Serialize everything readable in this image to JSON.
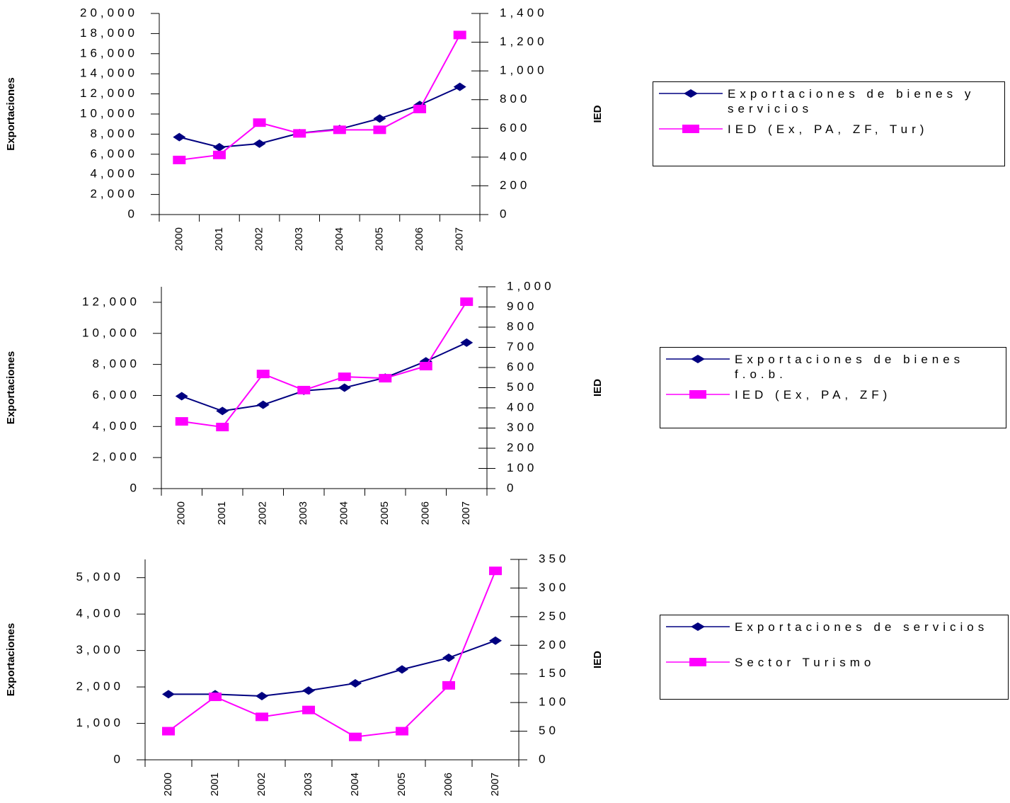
{
  "chart_data": [
    {
      "type": "line",
      "y_label": "Exportaciones",
      "y2_label": "IED",
      "categories": [
        "2000",
        "2001",
        "2002",
        "2003",
        "2004",
        "2005",
        "2006",
        "2007"
      ],
      "series": [
        {
          "name": "Exportaciones de bienes y servicios",
          "color": "#000080",
          "marker": "diamond",
          "values": [
            7700,
            6700,
            7050,
            8100,
            8500,
            9550,
            10900,
            12700
          ]
        },
        {
          "name": "IED (Ex, PA, ZF, Tur)",
          "color": "#ff00ff",
          "marker": "square",
          "axis": "y2",
          "values": [
            380,
            415,
            640,
            565,
            590,
            590,
            735,
            1250
          ]
        }
      ],
      "ylim": [
        0,
        20000
      ],
      "yticks": [
        0,
        {
          "value": 2000,
          "label": "2,000"
        },
        {
          "value": 4000,
          "label": "4,000"
        },
        {
          "value": 6000,
          "label": "6,000"
        },
        {
          "value": 8000,
          "label": "8,000"
        },
        {
          "value": 10000,
          "label": "10,000"
        },
        {
          "value": 12000,
          "label": "12,000"
        },
        {
          "value": 14000,
          "label": "14,000"
        },
        {
          "value": 16000,
          "label": "16,000"
        },
        {
          "value": 18000,
          "label": "18,000"
        },
        {
          "value": 20000,
          "label": "20,000"
        }
      ],
      "y2lim": [
        0,
        1400
      ],
      "y2ticks": [
        0,
        200,
        400,
        600,
        800,
        {
          "value": 1000,
          "label": "1,000"
        },
        {
          "value": 1200,
          "label": "1,200"
        },
        {
          "value": 1400,
          "label": "1,400"
        }
      ]
    },
    {
      "type": "line",
      "y_label": "Exportaciones",
      "y2_label": "IED",
      "categories": [
        "2000",
        "2001",
        "2002",
        "2003",
        "2004",
        "2005",
        "2006",
        "2007"
      ],
      "series": [
        {
          "name": "Exportaciones de bienes f.o.b.",
          "color": "#000080",
          "marker": "diamond",
          "values": [
            5950,
            5000,
            5400,
            6300,
            6500,
            7150,
            8200,
            9400
          ]
        },
        {
          "name": "IED (Ex, PA, ZF)",
          "color": "#ff00ff",
          "marker": "square",
          "axis": "y2",
          "values": [
            333,
            305,
            568,
            488,
            554,
            547,
            607,
            926
          ]
        }
      ],
      "ylim": [
        0,
        13000
      ],
      "yticks": [
        0,
        {
          "value": 2000,
          "label": "2,000"
        },
        {
          "value": 4000,
          "label": "4,000"
        },
        {
          "value": 6000,
          "label": "6,000"
        },
        {
          "value": 8000,
          "label": "8,000"
        },
        {
          "value": 10000,
          "label": "10,000"
        },
        {
          "value": 12000,
          "label": "12,000"
        }
      ],
      "y2lim": [
        0,
        1000
      ],
      "y2ticks": [
        0,
        100,
        200,
        300,
        400,
        500,
        600,
        700,
        800,
        900,
        {
          "value": 1000,
          "label": "1,000"
        }
      ]
    },
    {
      "type": "line",
      "y_label": "Exportaciones",
      "y2_label": "IED",
      "categories": [
        "2000",
        "2001",
        "2002",
        "2003",
        "2004",
        "2005",
        "2006",
        "2007"
      ],
      "series": [
        {
          "name": "Exportaciones de servicios",
          "color": "#000080",
          "marker": "diamond",
          "values": [
            1800,
            1800,
            1750,
            1900,
            2100,
            2480,
            2800,
            3270
          ]
        },
        {
          "name": "Sector Turismo",
          "color": "#ff00ff",
          "marker": "square",
          "axis": "y2",
          "values": [
            50,
            110,
            75,
            87,
            40,
            50,
            130,
            330
          ]
        }
      ],
      "ylim": [
        0,
        5500
      ],
      "yticks": [
        0,
        {
          "value": 1000,
          "label": "1,000"
        },
        {
          "value": 2000,
          "label": "2,000"
        },
        {
          "value": 3000,
          "label": "3,000"
        },
        {
          "value": 4000,
          "label": "4,000"
        },
        {
          "value": 5000,
          "label": "5,000"
        }
      ],
      "y2lim": [
        0,
        350
      ],
      "y2ticks": [
        0,
        50,
        100,
        150,
        200,
        250,
        300,
        350
      ]
    }
  ]
}
